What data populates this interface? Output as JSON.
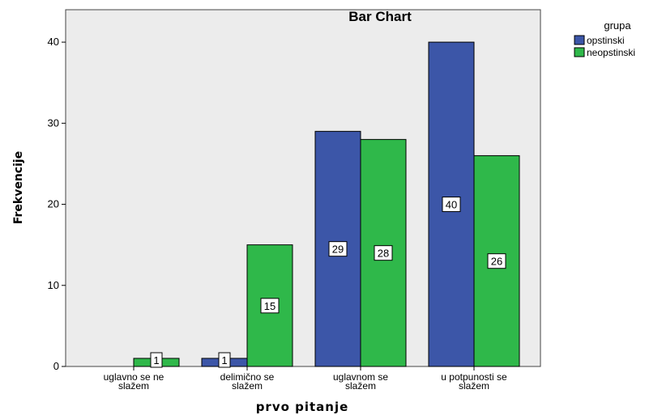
{
  "chart_data": {
    "type": "bar",
    "title": "Bar Chart",
    "xlabel": "prvo pitanje",
    "ylabel": "Frekvencije",
    "categories": [
      [
        "uglavno se ne",
        "slažem"
      ],
      [
        "delimično se",
        "slažem"
      ],
      [
        "uglavnom se",
        "slažem"
      ],
      [
        "u potpunosti se",
        "slažem"
      ]
    ],
    "series": [
      {
        "name": "opstinski",
        "color": "#3c56a8",
        "values": [
          0,
          1,
          29,
          40
        ],
        "data_labels": [
          "",
          "1",
          "29",
          "40"
        ]
      },
      {
        "name": "neopstinski",
        "color": "#2fb84a",
        "values": [
          1,
          15,
          28,
          26
        ],
        "data_labels": [
          "1",
          "15",
          "28",
          "26"
        ]
      }
    ],
    "ylim": [
      0,
      44
    ],
    "yticks": [
      0,
      10,
      20,
      30,
      40
    ],
    "ytick_labels": [
      "0",
      "10",
      "20",
      "30",
      "40"
    ],
    "grid": false,
    "legend": {
      "title": "grupa",
      "position": "top-right"
    },
    "plot_background": "#ececec"
  }
}
